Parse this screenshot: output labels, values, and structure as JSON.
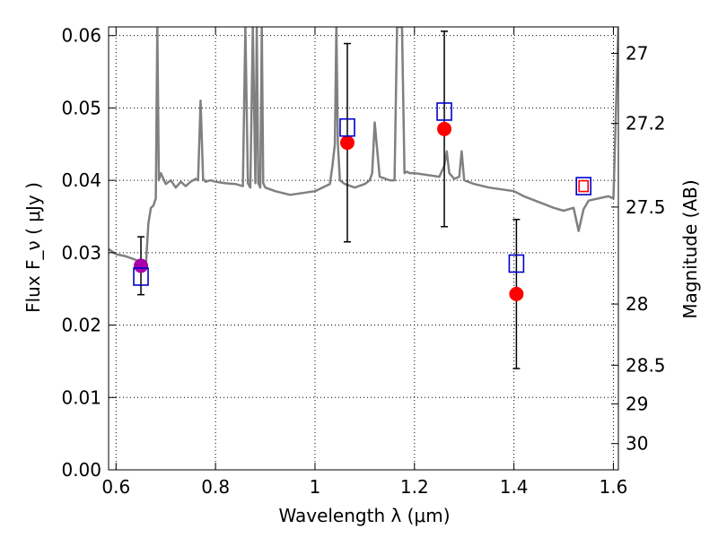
{
  "chart_data": {
    "type": "scatter",
    "xlabel": "Wavelength  λ (μm)",
    "ylabel": "Flux  F_ν  ( μJy )",
    "y2label": "Magnitude (AB)",
    "xlim": [
      0.585,
      1.61
    ],
    "ylim": [
      0.0,
      0.0612
    ],
    "grid": true,
    "x_ticks": [
      0.6,
      0.8,
      1.0,
      1.2,
      1.4,
      1.6
    ],
    "x_tick_labels": [
      "0.6",
      "0.8",
      "1",
      "1.2",
      "1.4",
      "1.6"
    ],
    "y_ticks": [
      0.0,
      0.01,
      0.02,
      0.03,
      0.04,
      0.05,
      0.06
    ],
    "y_tick_labels": [
      "0.00",
      "0.01",
      "0.02",
      "0.03",
      "0.04",
      "0.05",
      "0.06"
    ],
    "mag_ticks": [
      27,
      27.2,
      27.5,
      28,
      28.5,
      29,
      30
    ],
    "mag_tick_labels": [
      "27",
      "27.2",
      "27.5",
      "28",
      "28.5",
      "29",
      "30"
    ],
    "colors": {
      "spectrum": "#808080",
      "observed": "#ff0000",
      "observed_edge": "#aa0000",
      "first_point": "#aa00aa",
      "model": "#0000cc",
      "errorbar": "#000000"
    },
    "series": [
      {
        "role": "model-spectrum",
        "x": [
          0.585,
          0.6,
          0.62,
          0.64,
          0.65,
          0.655,
          0.66,
          0.665,
          0.67,
          0.675,
          0.68,
          0.683,
          0.686,
          0.69,
          0.7,
          0.71,
          0.72,
          0.73,
          0.74,
          0.75,
          0.76,
          0.765,
          0.77,
          0.775,
          0.78,
          0.79,
          0.8,
          0.82,
          0.84,
          0.855,
          0.86,
          0.865,
          0.87,
          0.875,
          0.88,
          0.883,
          0.886,
          0.89,
          0.893,
          0.896,
          0.9,
          0.92,
          0.95,
          1.0,
          1.03,
          1.035,
          1.04,
          1.043,
          1.046,
          1.05,
          1.06,
          1.08,
          1.1,
          1.11,
          1.115,
          1.12,
          1.13,
          1.15,
          1.16,
          1.165,
          1.17,
          1.175,
          1.18,
          1.185,
          1.19,
          1.2,
          1.22,
          1.25,
          1.26,
          1.265,
          1.27,
          1.28,
          1.29,
          1.295,
          1.3,
          1.32,
          1.35,
          1.4,
          1.42,
          1.45,
          1.48,
          1.5,
          1.52,
          1.53,
          1.54,
          1.55,
          1.57,
          1.59,
          1.6,
          1.61
        ],
        "y": [
          0.0305,
          0.0298,
          0.0295,
          0.029,
          0.0285,
          0.0278,
          0.0283,
          0.034,
          0.0362,
          0.0365,
          0.0375,
          0.0612,
          0.04,
          0.041,
          0.0395,
          0.04,
          0.039,
          0.0398,
          0.0392,
          0.0398,
          0.0402,
          0.04,
          0.051,
          0.0402,
          0.0398,
          0.04,
          0.0398,
          0.0396,
          0.0395,
          0.0392,
          0.0612,
          0.0396,
          0.039,
          0.0612,
          0.0396,
          0.0612,
          0.0396,
          0.039,
          0.0612,
          0.0396,
          0.039,
          0.0385,
          0.038,
          0.0385,
          0.0395,
          0.042,
          0.045,
          0.0612,
          0.045,
          0.04,
          0.0395,
          0.039,
          0.0395,
          0.04,
          0.041,
          0.048,
          0.0405,
          0.04,
          0.04,
          0.0612,
          0.0612,
          0.0612,
          0.041,
          0.0412,
          0.041,
          0.041,
          0.0408,
          0.0405,
          0.042,
          0.044,
          0.041,
          0.0402,
          0.0405,
          0.044,
          0.04,
          0.0395,
          0.039,
          0.0385,
          0.0378,
          0.037,
          0.0362,
          0.0358,
          0.0362,
          0.033,
          0.036,
          0.0372,
          0.0375,
          0.0378,
          0.0375,
          0.0612
        ]
      },
      {
        "role": "observed",
        "x": [
          0.65,
          1.065,
          1.26,
          1.405
        ],
        "y": [
          0.0282,
          0.0452,
          0.0471,
          0.0243
        ],
        "yerr": [
          0.004,
          0.0137,
          0.0135,
          0.0103
        ]
      },
      {
        "role": "model-photometry",
        "x": [
          0.65,
          1.065,
          1.26,
          1.405,
          1.54
        ],
        "y": [
          0.0267,
          0.0473,
          0.0495,
          0.0285,
          0.0392
        ]
      }
    ]
  }
}
